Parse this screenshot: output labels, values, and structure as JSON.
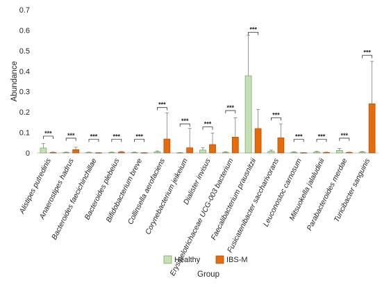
{
  "chart_data": {
    "type": "bar",
    "xlabel": "Group",
    "ylabel": "Abundance",
    "ylim": [
      0,
      0.7
    ],
    "yticks": [
      0,
      0.1,
      0.2,
      0.3,
      0.4,
      0.5,
      0.6,
      0.7
    ],
    "ytick_labels": [
      "0",
      "0.1",
      "0.2",
      "0.3",
      "0.4",
      "0.5",
      "0.6",
      "0.7"
    ],
    "grid": false,
    "legend_position": "bottom",
    "categories": [
      "Alistipes putredinis",
      "Anaerostipes hadrus",
      "Bacteroides faecichinchillae",
      "Bacteroides plebeius",
      "Bifidobacterium breve",
      "Collinsella aerofaciens",
      "Corynebacterium jeikeium",
      "Dialister invisus",
      "Erysipelotrichaceae UCG-003 bacterium",
      "Faecalibacterium prausnitzii",
      "Fusicatenibacter saccharivorans",
      "Leuconostoc carnosum",
      "Mitsuokella jalaludinii",
      "Parabacteroides merdae",
      "Turicibacter sanguinis"
    ],
    "series": [
      {
        "name": "Healthy",
        "color": "#c5e0b4",
        "edge": "#6f9e57",
        "values": [
          0.024,
          0.002,
          0.002,
          0.002,
          0.002,
          0.005,
          0.001,
          0.014,
          0.003,
          0.377,
          0.008,
          0.003,
          0.004,
          0.012,
          0.004
        ],
        "errors": [
          0.022,
          0.002,
          0.002,
          0.002,
          0.002,
          0.005,
          0.001,
          0.012,
          0.003,
          0.198,
          0.006,
          0.003,
          0.004,
          0.01,
          0.003
        ]
      },
      {
        "name": "IBS-M",
        "color": "#e46c0a",
        "edge": "#a84a05",
        "values": [
          0.002,
          0.016,
          0.001,
          0.004,
          0.001,
          0.068,
          0.025,
          0.041,
          0.077,
          0.119,
          0.074,
          0.001,
          0.002,
          0.002,
          0.24
        ],
        "errors": [
          0.002,
          0.012,
          0.001,
          0.003,
          0.001,
          0.128,
          0.095,
          0.056,
          0.095,
          0.094,
          0.068,
          0.001,
          0.002,
          0.002,
          0.208
        ]
      }
    ],
    "annotations": {
      "significance_label": "***",
      "bracket_tops": [
        0.082,
        0.072,
        0.067,
        0.067,
        0.067,
        0.222,
        0.142,
        0.127,
        0.207,
        0.59,
        0.172,
        0.067,
        0.067,
        0.072,
        0.477
      ]
    }
  }
}
